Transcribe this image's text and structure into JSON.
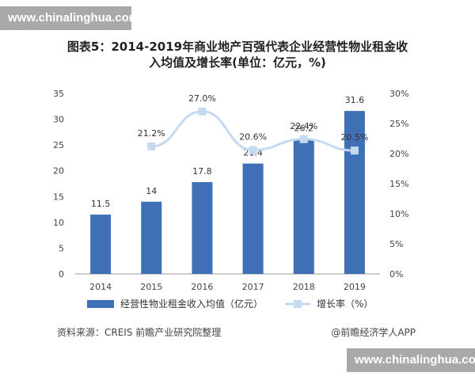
{
  "watermarks": {
    "top": "www.chinalinghua.com",
    "bottom": "www.chinalinghua.com"
  },
  "chart_data": {
    "type": "bar",
    "title_lines": [
      "图表5：2014-2019年商业地产百强代表企业经营性物业租金收",
      "入均值及增长率(单位：亿元，%)"
    ],
    "categories": [
      "2014",
      "2015",
      "2016",
      "2017",
      "2018",
      "2019"
    ],
    "series": [
      {
        "name": "经营性物业租金收入均值（亿元）",
        "type": "bar",
        "axis": "left",
        "color": "#3f6fb4",
        "values": [
          11.5,
          14,
          17.8,
          21.4,
          26.2,
          31.6
        ],
        "labels": [
          "11.5",
          "14",
          "17.8",
          "21.4",
          "26.2",
          "31.6"
        ]
      },
      {
        "name": "增长率（%）",
        "type": "line",
        "axis": "right",
        "color": "#c5d9f1",
        "values": [
          null,
          21.2,
          27.0,
          20.6,
          22.4,
          20.5
        ],
        "labels": [
          "",
          "21.2%",
          "27.0%",
          "20.6%",
          "22.4%",
          "20.5%"
        ]
      }
    ],
    "y_left": {
      "min": 0,
      "max": 35,
      "ticks": [
        0,
        5,
        10,
        15,
        20,
        25,
        30,
        35
      ],
      "tick_labels": [
        "0",
        "5",
        "10",
        "15",
        "20",
        "25",
        "30",
        "35"
      ]
    },
    "y_right": {
      "min": 0,
      "max": 30,
      "ticks": [
        0,
        5,
        10,
        15,
        20,
        25,
        30
      ],
      "tick_labels": [
        "0%",
        "5%",
        "10%",
        "15%",
        "20%",
        "25%",
        "30%"
      ]
    },
    "grid": false,
    "legend": "bottom"
  },
  "footer": {
    "source": "资料来源：CREIS 前瞻产业研究院整理",
    "credit": "@前瞻经济学人APP"
  }
}
